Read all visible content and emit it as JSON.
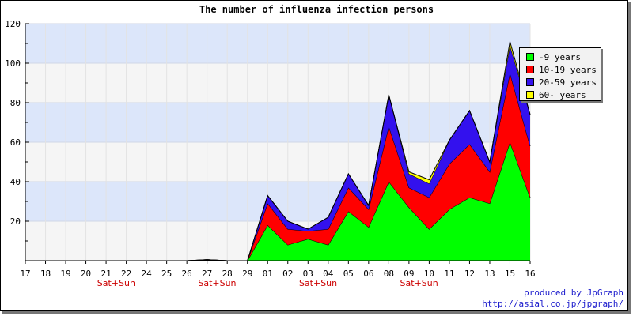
{
  "chart_data": {
    "type": "area",
    "stacked": true,
    "title": "The number of influenza infection persons",
    "xlabel": "",
    "ylabel": "",
    "ylim": [
      0,
      120
    ],
    "yticks": [
      20,
      40,
      60,
      80,
      100,
      120
    ],
    "grid": true,
    "legend_position": "top-right",
    "categories": [
      "17",
      "18",
      "19",
      "20",
      "21",
      "22",
      "24",
      "25",
      "26",
      "27",
      "28",
      "29",
      "01",
      "02",
      "03",
      "04",
      "05",
      "06",
      "08",
      "09",
      "10",
      "11",
      "12",
      "13",
      "15",
      "16"
    ],
    "weekend_label": "Sat+Sun",
    "weekend_after": [
      "21",
      "27",
      "03",
      "09"
    ],
    "series": [
      {
        "name": "-9 years",
        "color": "#00ff00",
        "values": [
          0,
          0,
          0,
          0,
          0,
          0,
          0,
          0,
          0,
          0.5,
          0,
          0,
          18,
          8,
          11,
          8,
          25,
          17,
          40,
          27,
          16,
          26,
          32,
          29,
          60,
          32
        ]
      },
      {
        "name": "10-19 years",
        "color": "#ff0000",
        "values": [
          0,
          0,
          0,
          0,
          0,
          0,
          0,
          0,
          0,
          0,
          0,
          0,
          11,
          8,
          4,
          8,
          12,
          9,
          28,
          10,
          16,
          23,
          27,
          16,
          35,
          26
        ]
      },
      {
        "name": "20-59 years",
        "color": "#3311ee",
        "values": [
          0,
          0,
          0,
          0,
          0,
          0,
          0,
          0,
          0,
          0,
          0,
          0,
          4,
          4,
          1,
          6,
          7,
          2,
          16,
          7,
          7,
          12,
          17,
          5,
          14,
          16
        ]
      },
      {
        "name": "60- years",
        "color": "#ffff00",
        "values": [
          0,
          0,
          0,
          0,
          0,
          0,
          0,
          0,
          0,
          0,
          0,
          0,
          0,
          0,
          0,
          0,
          0,
          0,
          0,
          1,
          2,
          0,
          0,
          0,
          2,
          0
        ]
      }
    ]
  },
  "credit": {
    "line1": "produced by JpGraph",
    "line2": "http://asial.co.jp/jpgraph/"
  }
}
